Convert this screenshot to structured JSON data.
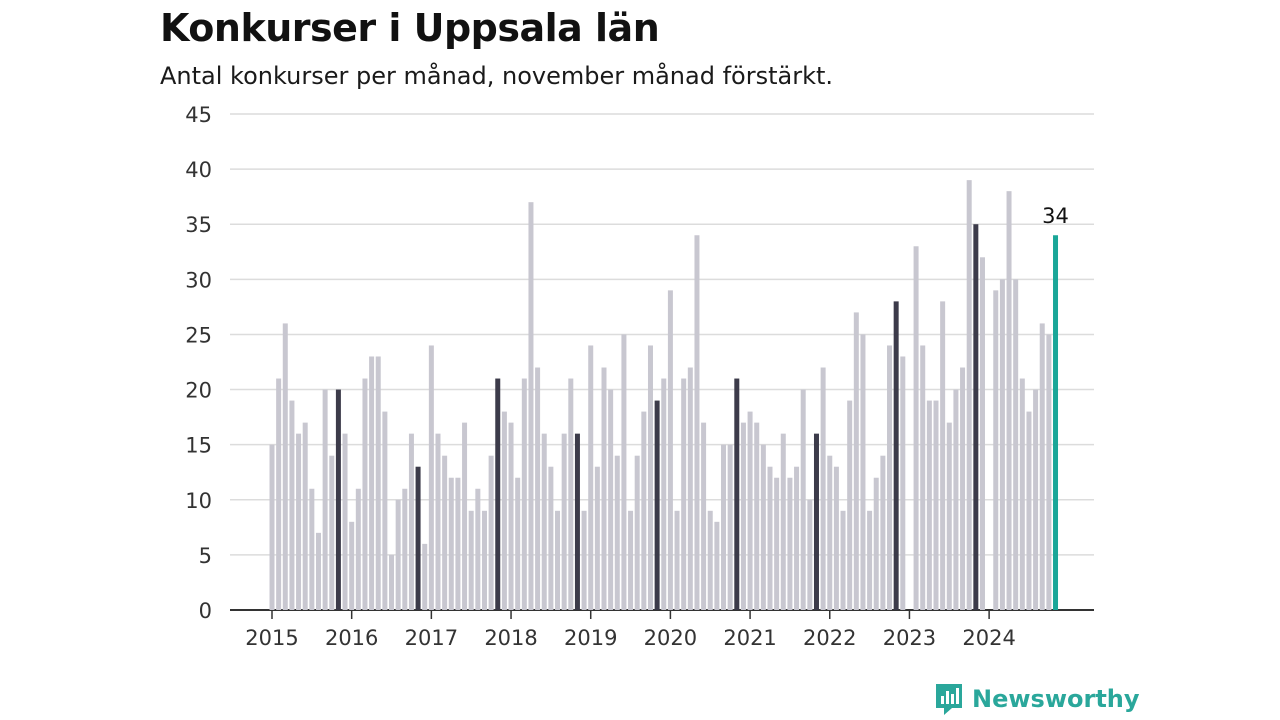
{
  "header": {
    "title": "Konkurser i Uppsala län",
    "subtitle": "Antal konkurser per månad, november månad förstärkt."
  },
  "brand": {
    "name": "Newsworthy",
    "icon": "newsworthy-logo-icon"
  },
  "colors": {
    "regular_bar": "#c8c7d0",
    "november_bar": "#3c3b4a",
    "latest_bar": "#1aa698",
    "grid": "#dcdcdc",
    "axis": "#333333",
    "brand": "#2aa79b"
  },
  "chart_data": {
    "type": "bar",
    "ylim": [
      0,
      45
    ],
    "y_ticks": [
      0,
      5,
      10,
      15,
      20,
      25,
      30,
      35,
      40,
      45
    ],
    "x_tick_labels": [
      "2015",
      "2016",
      "2017",
      "2018",
      "2019",
      "2020",
      "2021",
      "2022",
      "2023",
      "2024"
    ],
    "grid": true,
    "start": "2015-01",
    "highlight": "november bars dark; latest month teal with value label",
    "latest_label": "34",
    "values": [
      15,
      21,
      26,
      19,
      16,
      17,
      11,
      7,
      20,
      14,
      20,
      16,
      8,
      11,
      21,
      23,
      23,
      18,
      5,
      10,
      11,
      16,
      13,
      6,
      24,
      16,
      14,
      12,
      12,
      17,
      9,
      11,
      9,
      14,
      21,
      18,
      17,
      12,
      21,
      37,
      22,
      16,
      13,
      9,
      16,
      21,
      16,
      9,
      24,
      13,
      22,
      20,
      14,
      25,
      9,
      14,
      18,
      24,
      19,
      21,
      29,
      9,
      21,
      22,
      34,
      17,
      9,
      8,
      15,
      15,
      21,
      17,
      18,
      17,
      15,
      13,
      12,
      16,
      12,
      13,
      20,
      10,
      16,
      22,
      14,
      13,
      9,
      19,
      27,
      25,
      9,
      12,
      14,
      24,
      28,
      23,
      0,
      33,
      24,
      19,
      19,
      28,
      17,
      20,
      22,
      39,
      35,
      32,
      0,
      29,
      30,
      38,
      30,
      21,
      18,
      20,
      26,
      25,
      34
    ]
  }
}
